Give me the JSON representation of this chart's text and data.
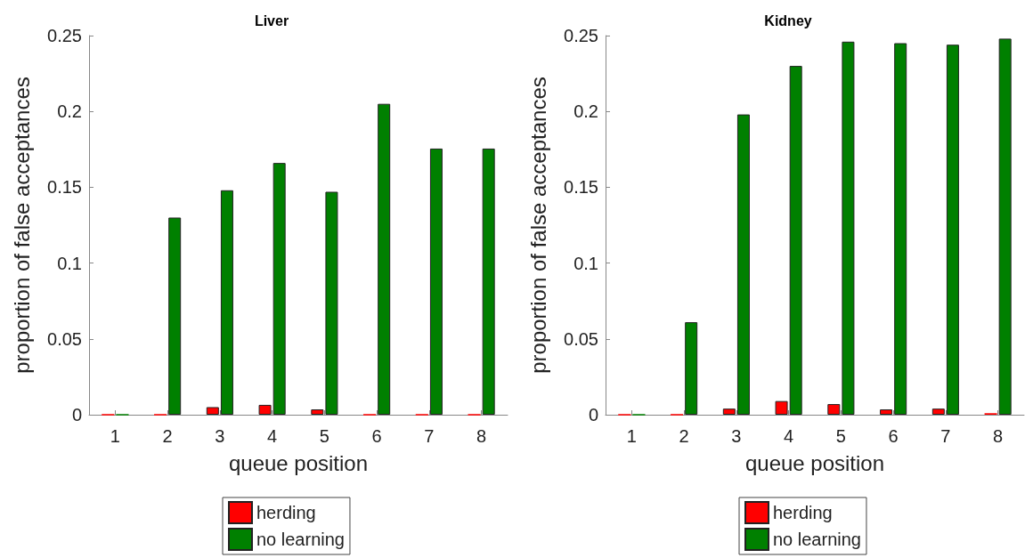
{
  "chart_data": [
    {
      "type": "bar",
      "title": "Liver",
      "xlabel": "queue position",
      "ylabel": "proportion of false acceptances",
      "categories": [
        "1",
        "2",
        "3",
        "4",
        "5",
        "6",
        "7",
        "8"
      ],
      "series": [
        {
          "name": "herding",
          "color": "#ff0000",
          "values": [
            0,
            0,
            0.005,
            0.0065,
            0.0035,
            0,
            0,
            0
          ]
        },
        {
          "name": "no learning",
          "color": "#008000",
          "values": [
            0,
            0.13,
            0.148,
            0.166,
            0.147,
            0.205,
            0.1755,
            0.1755
          ]
        }
      ],
      "ylim": [
        0,
        0.25
      ],
      "yticks": [
        0,
        0.05,
        0.1,
        0.15,
        0.2,
        0.25
      ],
      "grid": false,
      "legend": "bottom"
    },
    {
      "type": "bar",
      "title": "Kidney",
      "xlabel": "queue position",
      "ylabel": "proportion of false acceptances",
      "categories": [
        "1",
        "2",
        "3",
        "4",
        "5",
        "6",
        "7",
        "8"
      ],
      "series": [
        {
          "name": "herding",
          "color": "#ff0000",
          "values": [
            0,
            0,
            0.004,
            0.009,
            0.007,
            0.0035,
            0.004,
            0.001
          ]
        },
        {
          "name": "no learning",
          "color": "#008000",
          "values": [
            0,
            0.061,
            0.198,
            0.23,
            0.246,
            0.245,
            0.244,
            0.248
          ]
        }
      ],
      "ylim": [
        0,
        0.25
      ],
      "yticks": [
        0,
        0.05,
        0.1,
        0.15,
        0.2,
        0.25
      ],
      "grid": false,
      "legend": "bottom"
    }
  ]
}
